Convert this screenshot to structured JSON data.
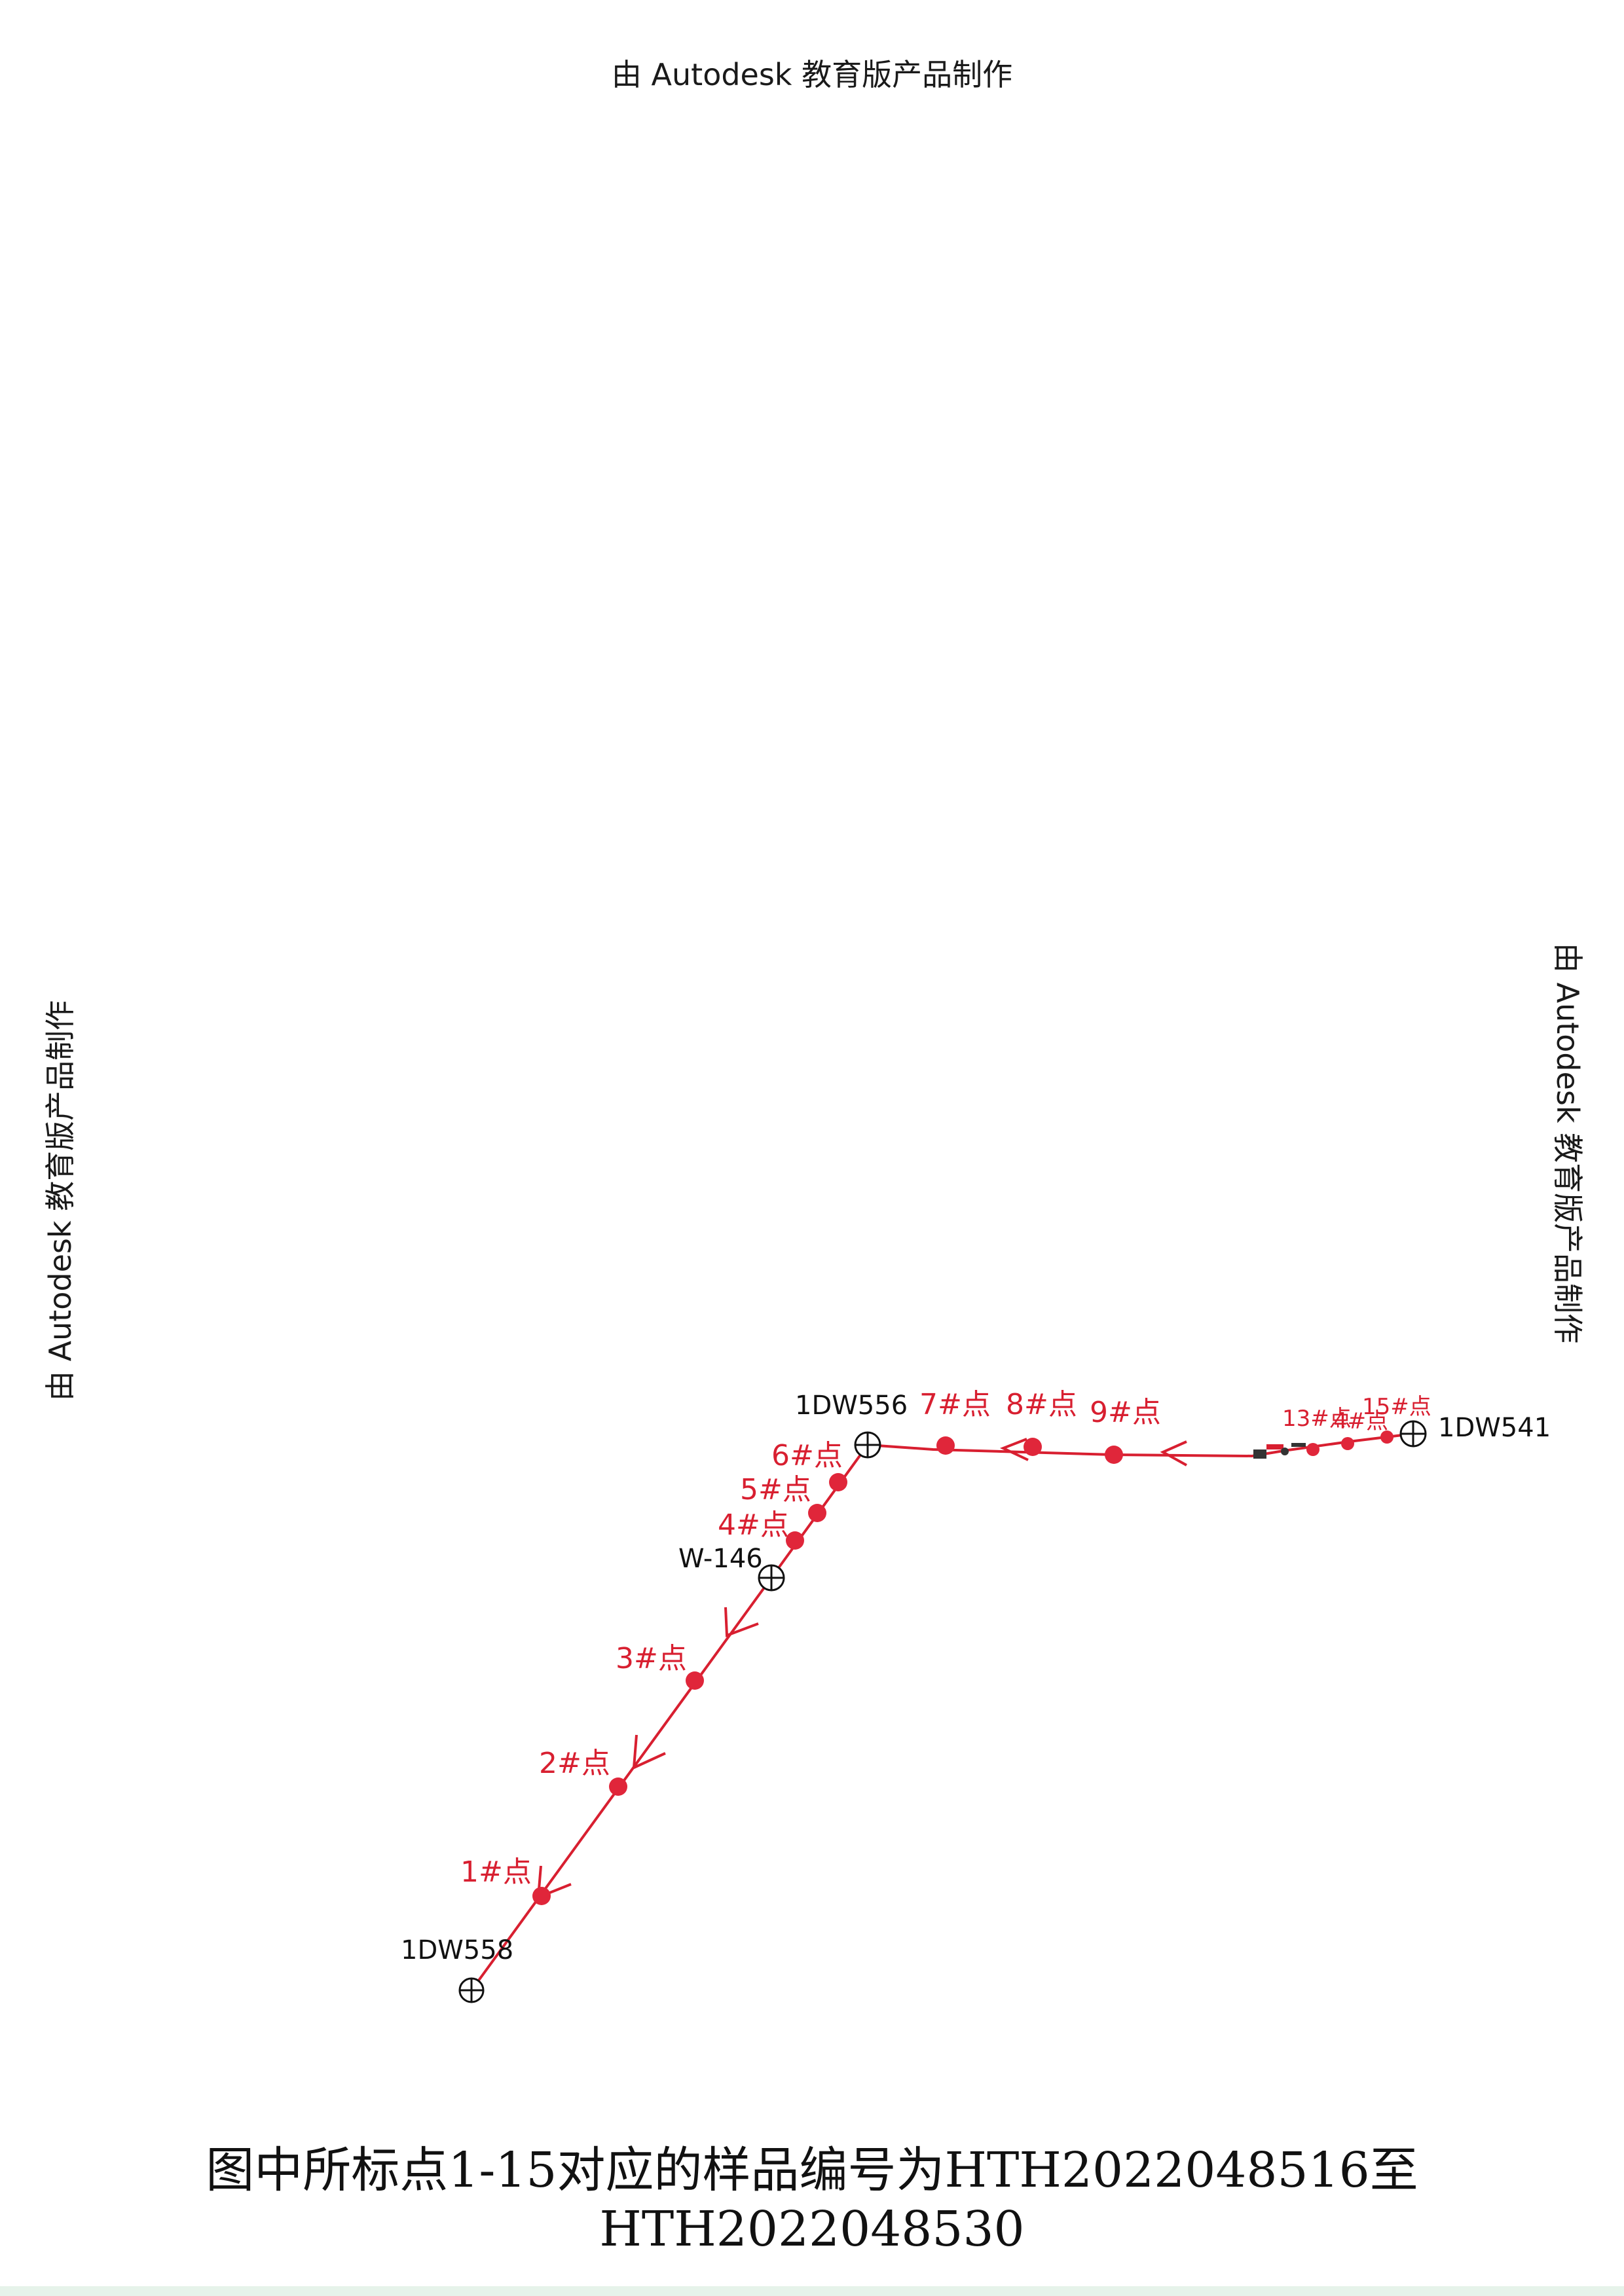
{
  "watermarks": {
    "top": "由 Autodesk 教育版产品制作",
    "left": "由 Autodesk 教育版产品制作",
    "right": "由 Autodesk 教育版产品制作"
  },
  "stations": {
    "s1": "1DW558",
    "s2": "W-146",
    "s3": "1DW556",
    "s4": "1DW541"
  },
  "points": {
    "p1": "1#点",
    "p2": "2#点",
    "p3": "3#点",
    "p4": "4#点",
    "p5": "5#点",
    "p6": "6#点",
    "p7": "7#点",
    "p8": "8#点",
    "p9": "9#点",
    "p13": "13#点",
    "p14": "4#点",
    "p15": "15#点"
  },
  "caption": "图中所标点1-15对应的样品编号为HTH2022048516至HTH2022048530",
  "colors": {
    "line": "#d81f30",
    "point": "#e0263a",
    "station": "#111111"
  }
}
